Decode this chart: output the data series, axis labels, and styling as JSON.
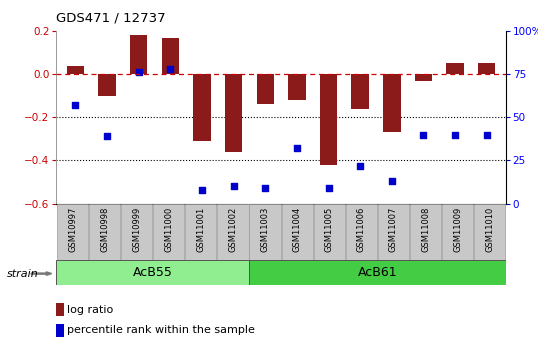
{
  "title": "GDS471 / 12737",
  "samples": [
    "GSM10997",
    "GSM10998",
    "GSM10999",
    "GSM11000",
    "GSM11001",
    "GSM11002",
    "GSM11003",
    "GSM11004",
    "GSM11005",
    "GSM11006",
    "GSM11007",
    "GSM11008",
    "GSM11009",
    "GSM11010"
  ],
  "log_ratio": [
    0.04,
    -0.1,
    0.18,
    0.17,
    -0.31,
    -0.36,
    -0.14,
    -0.12,
    -0.42,
    -0.16,
    -0.27,
    -0.03,
    0.05,
    0.05
  ],
  "percentile": [
    57,
    39,
    76,
    78,
    8,
    10,
    9,
    32,
    9,
    22,
    13,
    40,
    40,
    40
  ],
  "acb55_count": 6,
  "acb61_count": 8,
  "ylim_left": [
    -0.6,
    0.2
  ],
  "ylim_right": [
    0,
    100
  ],
  "bar_color": "#8B1A1A",
  "dot_color": "#0000CD",
  "dashed_color": "#CC0000",
  "acb55_color": "#90EE90",
  "acb61_color": "#44CC44",
  "label_bg": "#C8C8C8"
}
